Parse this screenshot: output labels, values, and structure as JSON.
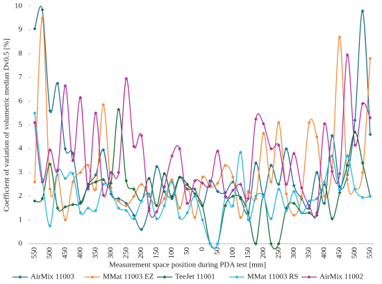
{
  "chart_data": {
    "type": "line",
    "ylabel": "Coefficient of variation of volumetric median Dv0.5 [%]",
    "xlabel": "Measurement space position during PDA test [mm]",
    "categories": [
      "550",
      null,
      "500",
      null,
      "450",
      null,
      "400",
      null,
      "350",
      null,
      "300",
      null,
      "250",
      null,
      "200",
      null,
      "150",
      null,
      "100",
      null,
      "50",
      null,
      "0",
      null,
      "50",
      null,
      "100",
      null,
      "150",
      null,
      "200",
      null,
      "250",
      null,
      "300",
      null,
      "350",
      null,
      "400",
      null,
      "450",
      null,
      "500",
      null,
      "550"
    ],
    "ylim": [
      0,
      10
    ],
    "yticks": [
      0,
      1,
      2,
      3,
      4,
      5,
      6,
      7,
      8,
      9,
      10
    ],
    "grid": false,
    "legend": "bottom",
    "series": [
      {
        "name": "AirMix 11003",
        "color": "#1f6e8c",
        "values": [
          9.05,
          9.85,
          5.6,
          6.75,
          4.0,
          3.8,
          1.75,
          2.5,
          2.9,
          3.95,
          2.1,
          1.9,
          1.7,
          1.2,
          0.6,
          1.5,
          3.25,
          2.2,
          2.0,
          2.8,
          2.3,
          2.3,
          1.6,
          2.65,
          2.2,
          2.15,
          2.6,
          1.9,
          1.3,
          3.4,
          2.05,
          3.3,
          2.5,
          4.0,
          2.45,
          1.9,
          1.5,
          3.0,
          1.7,
          4.55,
          2.4,
          2.9,
          5.2,
          9.8,
          4.6
        ]
      },
      {
        "name": "MMat 11003 EZ",
        "color": "#f28c3c",
        "values": [
          2.6,
          9.5,
          2.3,
          2.9,
          1.0,
          2.6,
          3.0,
          3.3,
          2.3,
          5.85,
          2.35,
          1.8,
          1.6,
          2.0,
          2.5,
          2.0,
          1.6,
          1.9,
          2.7,
          1.5,
          2.5,
          1.1,
          2.8,
          2.4,
          2.55,
          3.3,
          2.8,
          1.1,
          2.2,
          1.9,
          4.65,
          2.6,
          5.1,
          2.1,
          1.2,
          2.0,
          5.1,
          4.5,
          2.0,
          3.2,
          8.7,
          2.7,
          2.3,
          3.0,
          7.8
        ]
      },
      {
        "name": "TeeJet 11001",
        "color": "#1a6e3a",
        "values": [
          1.8,
          1.9,
          3.35,
          1.5,
          1.55,
          1.65,
          1.7,
          2.4,
          2.6,
          2.7,
          2.55,
          5.65,
          2.65,
          2.3,
          1.8,
          2.75,
          1.6,
          2.95,
          1.9,
          2.8,
          2.5,
          2.1,
          1.6,
          0,
          0,
          1.6,
          2.0,
          1.95,
          1.3,
          0,
          2.0,
          0,
          0,
          1.5,
          1.7,
          1.3,
          1.3,
          1.2,
          2.5,
          1.05,
          2.15,
          3.3,
          4.7,
          3.4,
          2.0
        ]
      },
      {
        "name": "MMat 11003 RS",
        "color": "#29b6e0",
        "values": [
          5.5,
          2.7,
          0.75,
          3.05,
          2.75,
          2.95,
          1.3,
          1.5,
          1.4,
          2.5,
          2.2,
          1.5,
          1.4,
          1.05,
          1.8,
          2.1,
          1.05,
          1.6,
          2.6,
          1.1,
          1.3,
          2.0,
          1.0,
          0,
          0,
          1.95,
          1.6,
          3.85,
          1.0,
          2.0,
          2.0,
          1.05,
          2.3,
          1.4,
          2.2,
          1.3,
          1.8,
          1.9,
          2.6,
          3.7,
          2.25,
          3.7,
          2.3,
          1.95,
          2.0
        ]
      },
      {
        "name": "AirMix 11002",
        "color": "#b52fa0",
        "values": [
          5.1,
          2.6,
          3.95,
          3.1,
          6.65,
          3.5,
          6.15,
          2.3,
          5.5,
          2.05,
          3.0,
          3.0,
          6.95,
          4.1,
          4.55,
          1.4,
          1.35,
          2.4,
          3.7,
          4.0,
          1.7,
          2.65,
          2.55,
          2.45,
          3.9,
          2.0,
          2.25,
          2.5,
          1.9,
          5.25,
          5.05,
          4.0,
          4.15,
          2.5,
          3.8,
          2.35,
          1.6,
          1.3,
          5.05,
          3.05,
          2.95,
          7.95,
          4.15,
          5.9,
          5.3
        ]
      }
    ]
  }
}
